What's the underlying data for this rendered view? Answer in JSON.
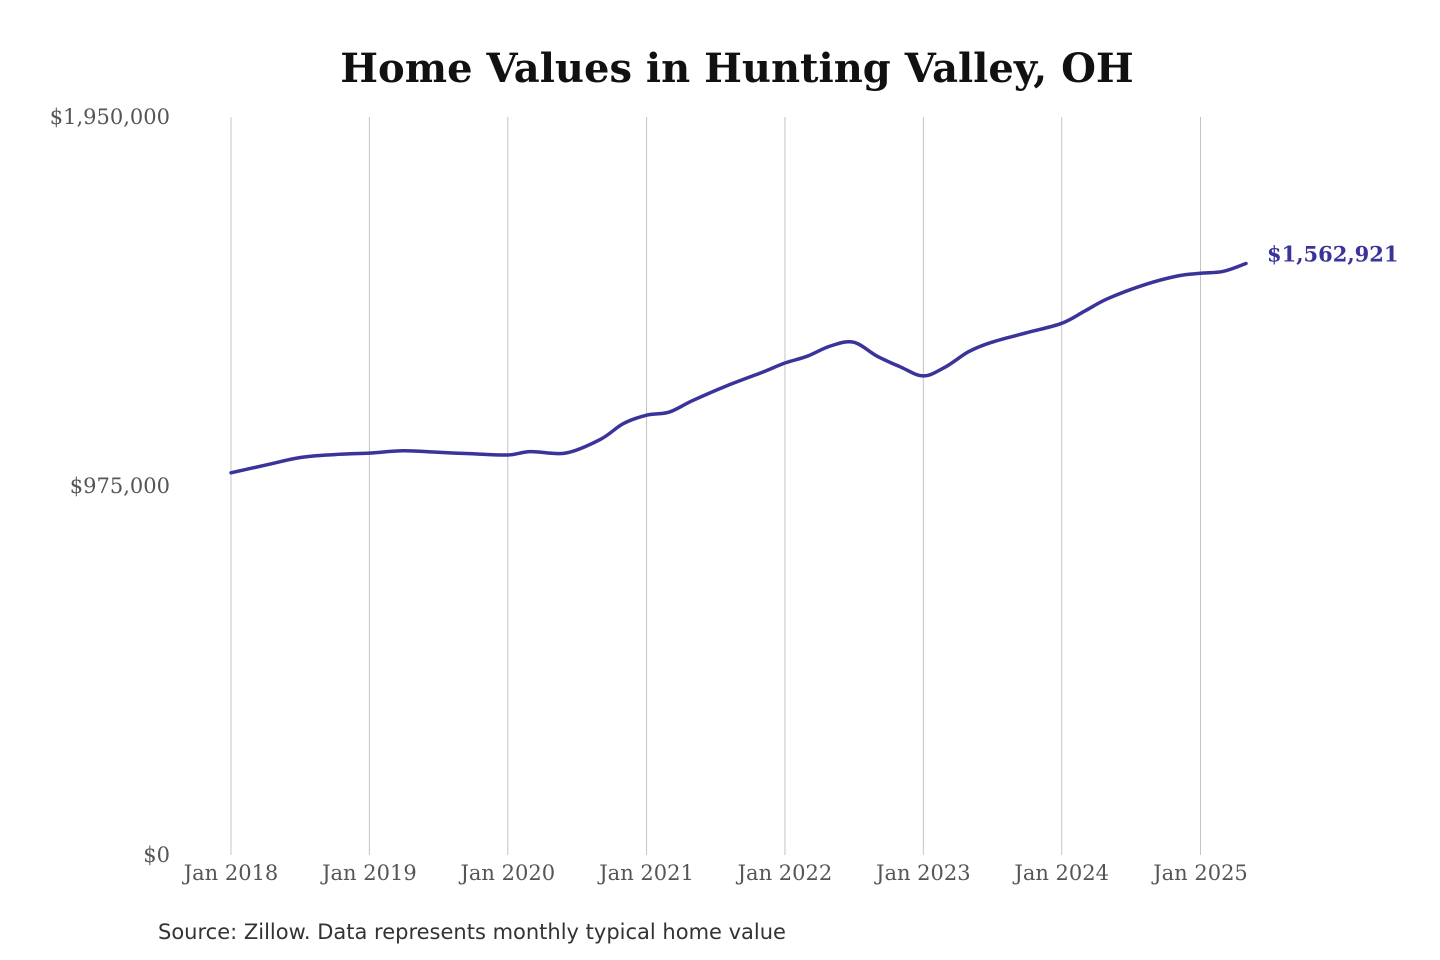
{
  "chart_data": {
    "type": "line",
    "title": "Home Values in Hunting Valley, OH",
    "xlabel": "",
    "ylabel": "",
    "source": "Source: Zillow. Data represents monthly typical home value",
    "x_tick_labels": [
      "Jan 2018",
      "Jan 2019",
      "Jan 2020",
      "Jan 2021",
      "Jan 2022",
      "Jan 2023",
      "Jan 2024",
      "Jan 2025"
    ],
    "y_tick_labels": [
      "$1,950,000",
      "$975,000",
      "$0"
    ],
    "ylim": [
      0,
      1950000
    ],
    "grid": "vertical",
    "legend": "none",
    "end_label": "$1,562,921",
    "line_color": "#3a3399",
    "series": [
      {
        "x": [
          "2018-01",
          "2018-04",
          "2018-07",
          "2018-10",
          "2019-01",
          "2019-04",
          "2019-07",
          "2019-10",
          "2020-01",
          "2020-03",
          "2020-06",
          "2020-09",
          "2020-11",
          "2021-01",
          "2021-03",
          "2021-05",
          "2021-08",
          "2021-11",
          "2022-01",
          "2022-03",
          "2022-05",
          "2022-07",
          "2022-09",
          "2022-11",
          "2023-01",
          "2023-03",
          "2023-05",
          "2023-07",
          "2023-10",
          "2024-01",
          "2024-03",
          "2024-05",
          "2024-08",
          "2024-11",
          "2025-01",
          "2025-03",
          "2025-05"
        ],
        "values": [
          1010000,
          1030000,
          1050000,
          1058000,
          1062000,
          1068000,
          1064000,
          1060000,
          1057000,
          1066000,
          1062000,
          1098000,
          1140000,
          1162000,
          1170000,
          1200000,
          1240000,
          1275000,
          1300000,
          1318000,
          1345000,
          1355000,
          1318000,
          1290000,
          1266000,
          1290000,
          1330000,
          1355000,
          1380000,
          1405000,
          1437000,
          1470000,
          1505000,
          1530000,
          1537000,
          1542000,
          1562921
        ]
      }
    ]
  }
}
